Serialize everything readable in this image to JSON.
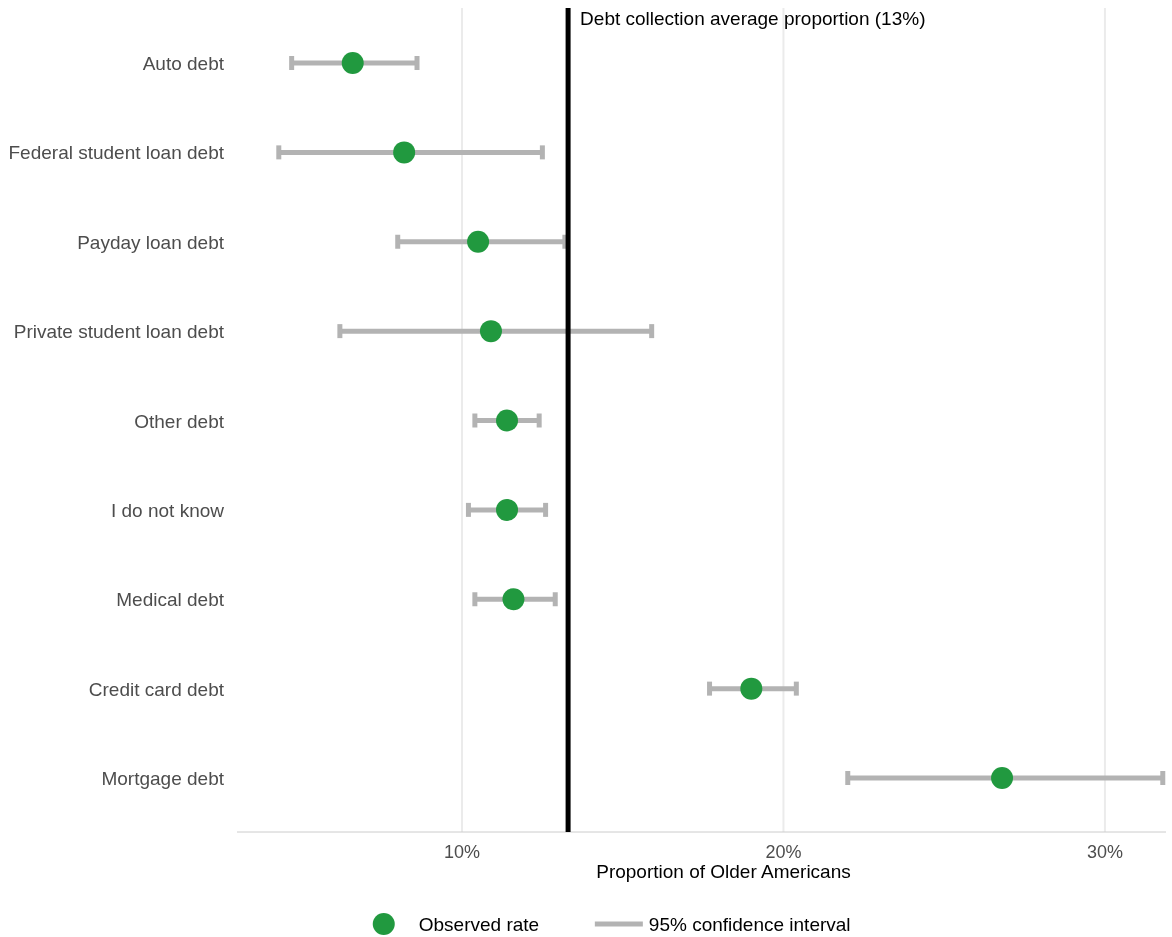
{
  "chart_data": {
    "type": "scatter",
    "orientation": "horizontal",
    "xlabel": "Proportion of Older Americans",
    "categories": [
      "Auto debt",
      "Federal student loan debt",
      "Payday loan debt",
      "Private student loan debt",
      "Other debt",
      "I do not know",
      "Medical debt",
      "Credit card debt",
      "Mortgage debt"
    ],
    "series": [
      {
        "name": "Observed rate",
        "color": "#21993f",
        "values": [
          6.6,
          8.2,
          10.5,
          10.9,
          11.4,
          11.4,
          11.6,
          19.0,
          26.8
        ],
        "errors": [
          [
            4.7,
            8.6
          ],
          [
            4.3,
            12.5
          ],
          [
            8.0,
            13.2
          ],
          [
            6.2,
            15.9
          ],
          [
            10.4,
            12.4
          ],
          [
            10.2,
            12.6
          ],
          [
            10.4,
            12.9
          ],
          [
            17.7,
            20.4
          ],
          [
            22.0,
            31.8
          ]
        ]
      }
    ],
    "xlim": [
      3,
      31.9
    ],
    "xticks": [
      {
        "value": 10,
        "label": "10%"
      },
      {
        "value": 20,
        "label": "20%"
      },
      {
        "value": 30,
        "label": "30%"
      }
    ],
    "ref_lines": [
      {
        "axis": "x",
        "value": 13.3,
        "label": "Debt collection average proportion (13%)",
        "color": "#000000"
      }
    ],
    "annotations": [
      "95% confidence interval"
    ],
    "grid": "x",
    "legend": "bottom",
    "marker": "circle"
  }
}
